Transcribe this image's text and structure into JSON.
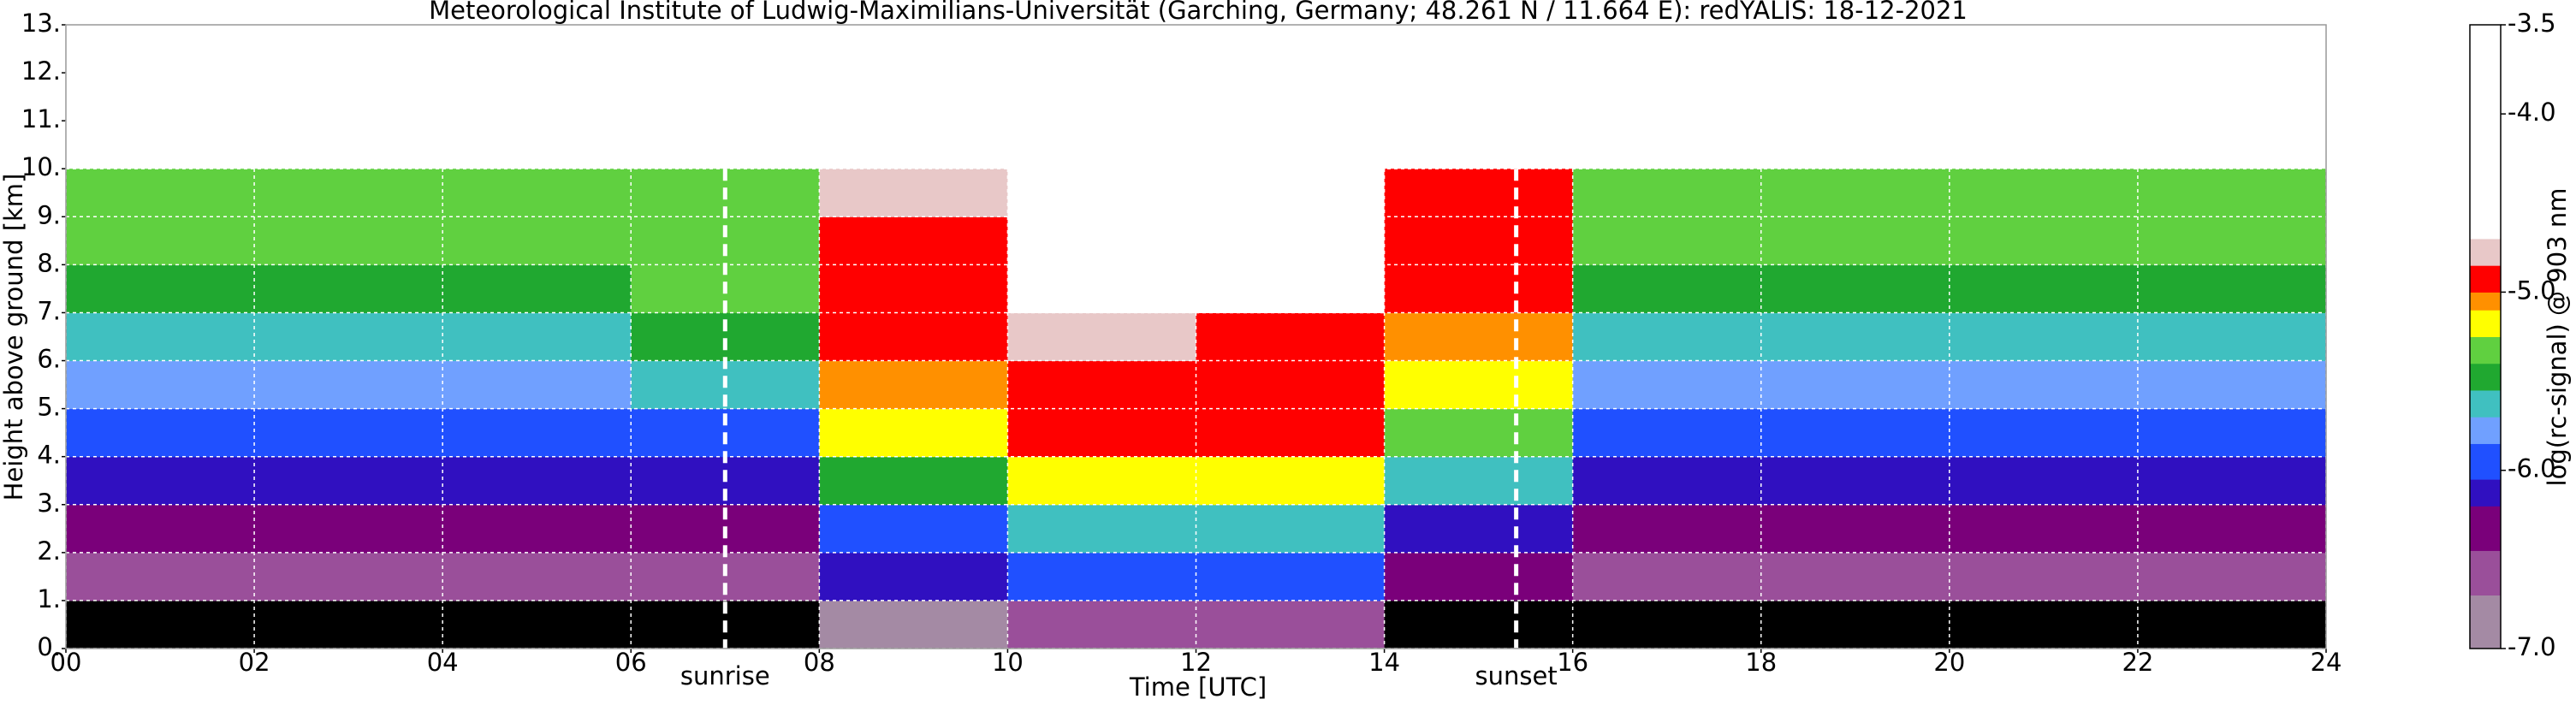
{
  "chart_data": {
    "type": "heatmap",
    "title": "Meteorological Institute of Ludwig-Maximilians-Universität (Garching, Germany; 48.261 N / 11.664 E):    redYALIS: 18-12-2021",
    "x_label": "Time [UTC]",
    "y_label": "Height above ground [km]",
    "colorbar_label": "log(rc-signal) @ 903 nm",
    "xlim": [
      0,
      24
    ],
    "xticks": [
      {
        "value": 0,
        "label": "00"
      },
      {
        "value": 2,
        "label": "02"
      },
      {
        "value": 4,
        "label": "04"
      },
      {
        "value": 6,
        "label": "06"
      },
      {
        "value": 8,
        "label": "08"
      },
      10,
      12,
      14,
      16,
      18,
      20,
      22,
      24
    ],
    "ylim": [
      0,
      13
    ],
    "yticks": [
      {
        "value": 0,
        "label": "0."
      },
      {
        "value": 1,
        "label": "1."
      },
      {
        "value": 2,
        "label": "2."
      },
      {
        "value": 3,
        "label": "3."
      },
      {
        "value": 4,
        "label": "4."
      },
      {
        "value": 5,
        "label": "5."
      },
      {
        "value": 6,
        "label": "6."
      },
      {
        "value": 7,
        "label": "7."
      },
      {
        "value": 8,
        "label": "8."
      },
      {
        "value": 9,
        "label": "9."
      },
      {
        "value": 10,
        "label": "10."
      },
      {
        "value": 11,
        "label": "11."
      },
      {
        "value": 12,
        "label": "12."
      },
      {
        "value": 13,
        "label": "13."
      }
    ],
    "clim": [
      -7,
      -3.5
    ],
    "cticks": [
      -3.5,
      {
        "value": -4,
        "label": "-4.0"
      },
      {
        "value": -5,
        "label": "-5.0"
      },
      {
        "value": -6,
        "label": "-6.0"
      },
      {
        "value": -7,
        "label": "-7.0"
      }
    ],
    "grid": true,
    "grid_color": "#ffffff",
    "under_color": "#000000",
    "colorscale": [
      {
        "value": -7,
        "color": "#a48aa4"
      },
      {
        "value": -6.7,
        "color": "#9a4f9a"
      },
      {
        "value": -6.45,
        "color": "#7a007a"
      },
      {
        "value": -6.2,
        "color": "#3010c0"
      },
      {
        "value": -6.05,
        "color": "#2050ff"
      },
      {
        "value": -5.85,
        "color": "#70a0ff"
      },
      {
        "value": -5.7,
        "color": "#40c0c0"
      },
      {
        "value": -5.55,
        "color": "#20a830"
      },
      {
        "value": -5.4,
        "color": "#60d040"
      },
      {
        "value": -5.25,
        "color": "#ffff00"
      },
      {
        "value": -5.1,
        "color": "#ff9000"
      },
      {
        "value": -5.0,
        "color": "#ff0000"
      },
      {
        "value": -4.85,
        "color": "#e8c8c8"
      },
      {
        "value": -4.7,
        "color": "#ffffff"
      },
      {
        "value": -3.5,
        "color": "#ffffff"
      }
    ],
    "xbins": [
      0,
      2,
      4,
      6,
      8,
      10,
      12,
      14,
      16,
      18,
      20,
      22,
      24
    ],
    "ybins": [
      0,
      1,
      2,
      3,
      4,
      5,
      6,
      7,
      8,
      9,
      10
    ],
    "z": [
      [
        -7.5,
        -7.5,
        -7.5,
        -7.5,
        -6.8,
        -6.5,
        -6.5,
        -7.2,
        -7.5,
        -7.5,
        -7.5,
        -7.5
      ],
      [
        -6.6,
        -6.6,
        -6.6,
        -6.5,
        -6.2,
        -6.0,
        -6.0,
        -6.4,
        -6.6,
        -6.6,
        -6.6,
        -6.6
      ],
      [
        -6.4,
        -6.4,
        -6.4,
        -6.3,
        -5.9,
        -5.6,
        -5.6,
        -6.1,
        -6.4,
        -6.4,
        -6.4,
        -6.4
      ],
      [
        -6.2,
        -6.2,
        -6.2,
        -6.1,
        -5.5,
        -5.15,
        -5.15,
        -5.7,
        -6.2,
        -6.2,
        -6.2,
        -6.2
      ],
      [
        -6.0,
        -6.0,
        -6.0,
        -5.9,
        -5.2,
        -5.0,
        -5.0,
        -5.4,
        -6.0,
        -6.0,
        -6.0,
        -6.0
      ],
      [
        -5.8,
        -5.8,
        -5.8,
        -5.7,
        -5.05,
        -4.95,
        -4.95,
        -5.2,
        -5.8,
        -5.8,
        -5.8,
        -5.8
      ],
      [
        -5.6,
        -5.6,
        -5.6,
        -5.5,
        -5.0,
        -4.8,
        -4.9,
        -5.1,
        -5.6,
        -5.6,
        -5.6,
        -5.6
      ],
      [
        -5.5,
        -5.5,
        -5.5,
        -5.4,
        -4.95,
        -4.6,
        -4.7,
        -5.0,
        -5.5,
        -5.5,
        -5.5,
        -5.5
      ],
      [
        -5.4,
        -5.4,
        -5.4,
        -5.35,
        -4.9,
        -4.4,
        -4.5,
        -4.95,
        -5.4,
        -5.4,
        -5.4,
        -5.4
      ],
      [
        -5.3,
        -5.3,
        -5.3,
        -5.3,
        -4.85,
        -4.3,
        -4.4,
        -4.9,
        -5.3,
        -5.3,
        -5.3,
        -5.3
      ]
    ],
    "annotations": [
      {
        "x": 7.0,
        "text": "sunrise"
      },
      {
        "x": 15.4,
        "text": "sunset"
      }
    ]
  }
}
